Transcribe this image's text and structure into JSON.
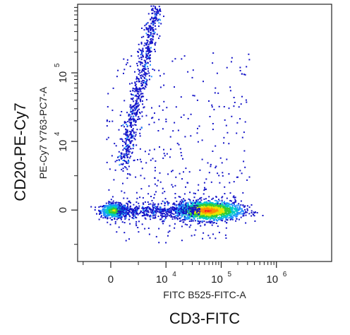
{
  "chart_data": {
    "type": "scatter",
    "scale": "biexponential",
    "outer_xlabel": "CD3-FITC",
    "outer_ylabel": "CD20-PE-Cy7",
    "xlabel": "FITC B525-FITC-A",
    "ylabel": "PE-Cy7 Y763-PC7-A",
    "x_ticks": [
      {
        "base": "0",
        "exp": ""
      },
      {
        "base": "10",
        "exp": "4"
      },
      {
        "base": "10",
        "exp": "5"
      },
      {
        "base": "10",
        "exp": "6"
      }
    ],
    "y_ticks": [
      {
        "base": "0",
        "exp": ""
      },
      {
        "base": "10",
        "exp": "4"
      },
      {
        "base": "10",
        "exp": "5"
      }
    ],
    "xlim": [
      -0.6,
      4.0
    ],
    "ylim": [
      -0.75,
      3.0
    ],
    "grid": false,
    "density_colors": [
      "#1414c8",
      "#1e90ff",
      "#00c8c8",
      "#32cd32",
      "#e6e600",
      "#ff8c00",
      "#ff2020"
    ],
    "populations": [
      {
        "name": "",
        "x_center": 0.05,
        "y_center": 0.0,
        "x_spread": 0.12,
        "y_spread": 0.05,
        "count": 600,
        "peak_density": 4
      },
      {
        "name": "",
        "x_center": 1.75,
        "y_center": 0.0,
        "x_spread": 0.3,
        "y_spread": 0.07,
        "count": 1600,
        "peak_density": 6
      },
      {
        "name": "",
        "x_center": 0.35,
        "y_center": 1.7,
        "x_spread": 0.1,
        "y_spread": 0.5,
        "count": 700,
        "peak_density": 2
      }
    ]
  }
}
